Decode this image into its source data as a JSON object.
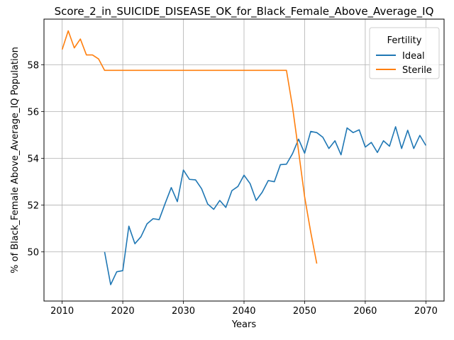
{
  "chart_data": {
    "type": "line",
    "title": "Score_2_in_SUICIDE_DISEASE_OK_for_Black_Female_Above_Average_IQ",
    "xlabel": "Years",
    "ylabel": "% of Black_Female Above_Average_IQ Population",
    "xlim": [
      2007,
      2073
    ],
    "ylim": [
      47.9,
      59.95
    ],
    "xticks": [
      2010,
      2020,
      2030,
      2040,
      2050,
      2060,
      2070
    ],
    "yticks": [
      50,
      52,
      54,
      56,
      58
    ],
    "grid": true,
    "legend": {
      "title": "Fertility",
      "placement": "top-right"
    },
    "series": [
      {
        "name": "Ideal",
        "color": "#1f77b4",
        "x": [
          2017,
          2018,
          2019,
          2020,
          2021,
          2022,
          2023,
          2024,
          2025,
          2026,
          2027,
          2028,
          2029,
          2030,
          2031,
          2032,
          2033,
          2034,
          2035,
          2036,
          2037,
          2038,
          2039,
          2040,
          2041,
          2042,
          2043,
          2044,
          2045,
          2046,
          2047,
          2048,
          2049,
          2050,
          2051,
          2052,
          2053,
          2054,
          2055,
          2056,
          2057,
          2058,
          2059,
          2060,
          2061,
          2062,
          2063,
          2064,
          2065,
          2066,
          2067,
          2068,
          2069,
          2070
        ],
        "y": [
          50.0,
          48.6,
          49.15,
          49.2,
          51.1,
          50.35,
          50.65,
          51.2,
          51.42,
          51.38,
          52.08,
          52.75,
          52.15,
          53.5,
          53.1,
          53.08,
          52.7,
          52.05,
          51.82,
          52.2,
          51.9,
          52.62,
          52.8,
          53.28,
          52.92,
          52.2,
          52.55,
          53.05,
          53.0,
          53.73,
          53.75,
          54.2,
          54.82,
          54.22,
          55.15,
          55.1,
          54.9,
          54.42,
          54.75,
          54.15,
          55.3,
          55.1,
          55.22,
          54.48,
          54.68,
          54.25,
          54.75,
          54.52,
          55.35,
          54.42,
          55.2,
          54.42,
          54.98,
          54.55
        ]
      },
      {
        "name": "Sterile",
        "color": "#ff7f0e",
        "x": [
          2010,
          2011,
          2012,
          2013,
          2014,
          2015,
          2016,
          2017,
          2018,
          2019,
          2020,
          2021,
          2022,
          2023,
          2024,
          2025,
          2026,
          2027,
          2028,
          2029,
          2030,
          2031,
          2032,
          2033,
          2034,
          2035,
          2036,
          2037,
          2038,
          2039,
          2040,
          2041,
          2042,
          2043,
          2044,
          2045,
          2046,
          2047,
          2048,
          2049,
          2050,
          2051,
          2052
        ],
        "y": [
          58.65,
          59.45,
          58.72,
          59.1,
          58.42,
          58.42,
          58.25,
          57.76,
          57.76,
          57.76,
          57.76,
          57.76,
          57.76,
          57.76,
          57.76,
          57.76,
          57.76,
          57.76,
          57.76,
          57.76,
          57.76,
          57.76,
          57.76,
          57.76,
          57.76,
          57.76,
          57.76,
          57.76,
          57.76,
          57.76,
          57.76,
          57.76,
          57.76,
          57.76,
          57.76,
          57.76,
          57.76,
          57.76,
          56.2,
          54.3,
          52.35,
          50.85,
          49.5
        ]
      }
    ]
  }
}
